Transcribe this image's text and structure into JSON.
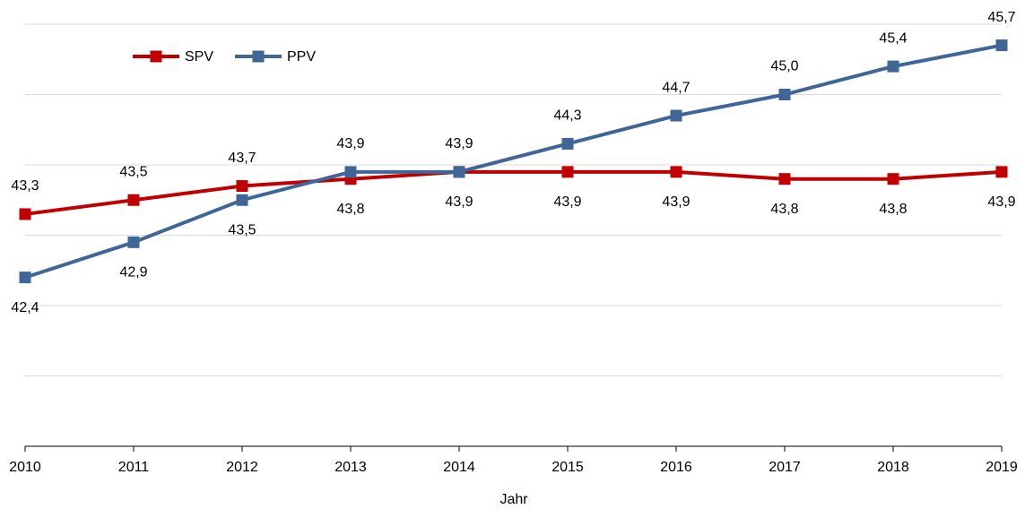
{
  "chart_data": {
    "type": "line",
    "x_label": "Jahr",
    "x": [
      2010,
      2011,
      2012,
      2013,
      2014,
      2015,
      2016,
      2017,
      2018,
      2019
    ],
    "xlim": [
      2010,
      2019
    ],
    "xticks": [
      2010,
      2011,
      2012,
      2013,
      2014,
      2015,
      2016,
      2017,
      2018,
      2019
    ],
    "ylim": [
      40,
      46
    ],
    "yticks": [
      40,
      41,
      42,
      43,
      44,
      45,
      46
    ],
    "grid": true,
    "series": [
      {
        "name": "SPV",
        "color": "#c00000",
        "values": [
          43.3,
          43.5,
          43.7,
          43.8,
          43.9,
          43.9,
          43.9,
          43.8,
          43.8,
          43.9
        ],
        "value_labels": [
          "43,3",
          "43,5",
          "43,7",
          "43,8",
          "43,9",
          "43,9",
          "43,9",
          "43,8",
          "43,8",
          "43,9"
        ]
      },
      {
        "name": "PPV",
        "color": "#3f6696",
        "values": [
          42.4,
          42.9,
          43.5,
          43.9,
          43.9,
          44.3,
          44.7,
          45.0,
          45.4,
          45.7
        ],
        "value_labels": [
          "42,4",
          "42,9",
          "43,5",
          "43,9",
          "43,9",
          "44,3",
          "44,7",
          "45,0",
          "45,4",
          "45,7"
        ]
      }
    ]
  }
}
